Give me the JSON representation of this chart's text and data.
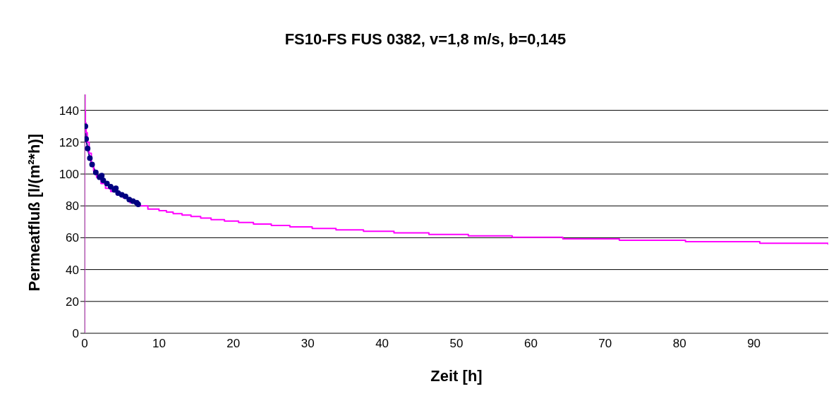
{
  "chart_data": {
    "type": "line",
    "title": "FS10-FS FUS 0382, v=1,8 m/s, b=0,145",
    "xlabel": "Zeit [h]",
    "ylabel": "Permeatfluß [l/(m²*h)]",
    "xlim": [
      0,
      100
    ],
    "xticks": [
      0,
      10,
      20,
      30,
      40,
      50,
      60,
      70,
      80,
      90
    ],
    "ylim": [
      0,
      150
    ],
    "yticks": [
      0,
      20,
      40,
      60,
      80,
      100,
      120,
      140
    ],
    "grid": "y",
    "series": [
      {
        "color": "#000080",
        "marker": "circle",
        "x": [
          0.1,
          0.2,
          0.4,
          0.7,
          1,
          1.5,
          2,
          2.3,
          2.5,
          3,
          3.5,
          4,
          4.2,
          4.5,
          5,
          5.5,
          6,
          6.5,
          7,
          7.2
        ],
        "values": [
          130,
          122,
          116,
          110,
          106,
          101,
          98,
          99,
          96,
          94,
          92,
          90,
          91,
          88,
          87,
          86,
          84,
          83,
          82,
          81
        ]
      },
      {
        "type": "step",
        "color": "#ff00ff",
        "marker": "none",
        "x": [
          0,
          0,
          0.05,
          0.1,
          0.2,
          0.35,
          0.6,
          0.9,
          1.2,
          1.6,
          2.2,
          2.8,
          3.5,
          4.3,
          5.2,
          6.1,
          7.1,
          8.5,
          10.0,
          11.0,
          11.9,
          13.1,
          14.3,
          15.6,
          17.0,
          18.8,
          20.7,
          22.7,
          25.1,
          27.6,
          30.6,
          33.8,
          37.5,
          41.6,
          46.3,
          51.6,
          57.5,
          64.3,
          71.9,
          80.8,
          90.8,
          100
        ],
        "values": [
          0,
          150,
          140,
          132,
          126,
          120,
          113,
          107,
          102,
          98,
          94,
          91,
          89,
          87,
          85,
          82,
          80,
          78,
          77,
          76.1,
          75.1,
          74.2,
          73.3,
          72.3,
          71.4,
          70.5,
          69.6,
          68.6,
          67.7,
          66.8,
          65.8,
          64.9,
          64.0,
          63.0,
          62.1,
          61.2,
          60.3,
          59.3,
          58.4,
          57.5,
          56.5,
          55.6
        ]
      }
    ]
  }
}
